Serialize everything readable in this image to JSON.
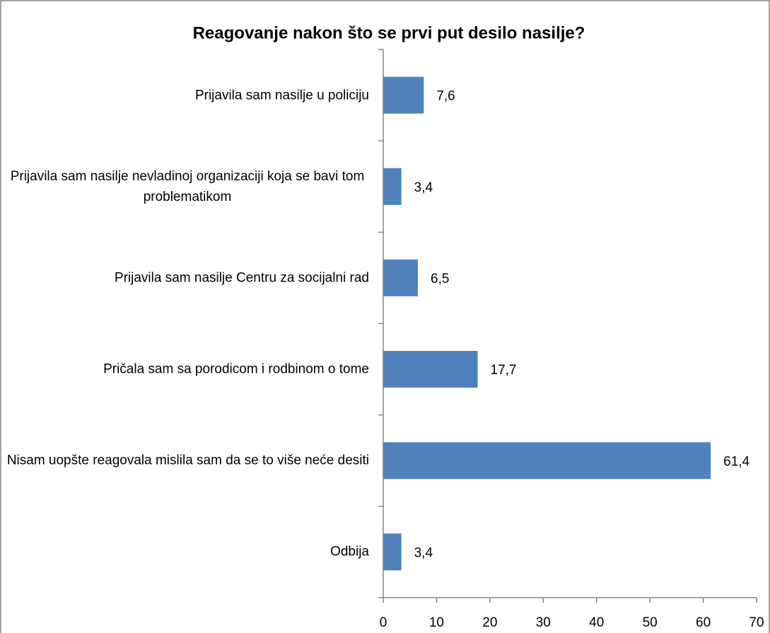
{
  "chart_data": {
    "type": "barh",
    "title": "Reagovanje nakon što se prvi put desilo nasilje?",
    "categories": [
      "Prijavila sam nasilje u policiju",
      "Prijavila sam nasilje nevladinoj organizaciji koja se bavi tom problematikom",
      "Prijavila sam nasilje Centru za socijalni rad",
      "Pričala sam sa porodicom i rodbinom o tome",
      "Nisam uopšte reagovala mislila sam da se to više neće desiti",
      "Odbija"
    ],
    "values": [
      7.6,
      3.4,
      6.5,
      17.7,
      61.4,
      3.4
    ],
    "value_labels": [
      "7,6",
      "3,4",
      "6,5",
      "17,7",
      "61,4",
      "3,4"
    ],
    "color": "#4f81bd",
    "xlim": [
      0,
      70
    ],
    "xticks": [
      0,
      10,
      20,
      30,
      40,
      50,
      60,
      70
    ],
    "grid": false
  }
}
